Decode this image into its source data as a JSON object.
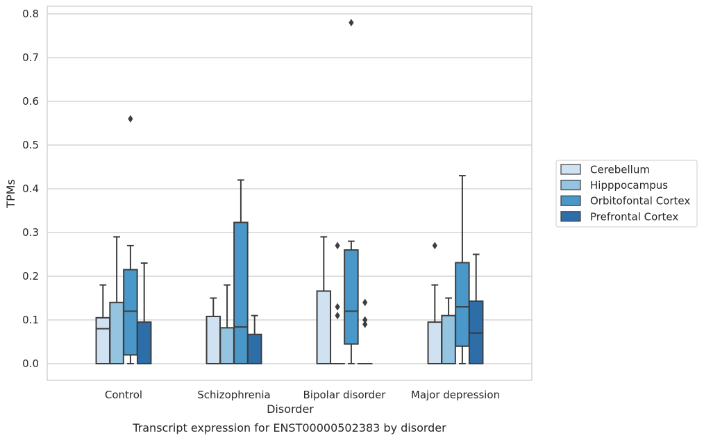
{
  "chart_data": {
    "type": "box",
    "title": "",
    "caption": "Transcript expression for ENST00000502383 by disorder",
    "xlabel": "Disorder",
    "ylabel": "TPMs",
    "ylim": [
      -0.04,
      0.82
    ],
    "yticks": [
      "0.0",
      "0.1",
      "0.2",
      "0.3",
      "0.4",
      "0.5",
      "0.6",
      "0.7",
      "0.8"
    ],
    "grid": "horizontal",
    "legend_position": "right",
    "categories": [
      "Control",
      "Schizophrenia",
      "Bipolar disorder",
      "Major depression"
    ],
    "series": [
      {
        "name": "Cerebellum",
        "color": "#d0e1f2",
        "boxes": [
          {
            "q1": 0.0,
            "median": 0.08,
            "q3": 0.105,
            "whisker_low": 0.0,
            "whisker_high": 0.18,
            "outliers": []
          },
          {
            "q1": 0.0,
            "median": 0.0,
            "q3": 0.108,
            "whisker_low": 0.0,
            "whisker_high": 0.15,
            "outliers": []
          },
          {
            "q1": 0.0,
            "median": 0.0,
            "q3": 0.166,
            "whisker_low": 0.0,
            "whisker_high": 0.29,
            "outliers": []
          },
          {
            "q1": 0.0,
            "median": 0.0,
            "q3": 0.095,
            "whisker_low": 0.0,
            "whisker_high": 0.18,
            "outliers": [
              0.27
            ]
          }
        ]
      },
      {
        "name": "Hipppocampus",
        "color": "#94c4df",
        "boxes": [
          {
            "q1": 0.0,
            "median": 0.0,
            "q3": 0.14,
            "whisker_low": 0.0,
            "whisker_high": 0.29,
            "outliers": []
          },
          {
            "q1": 0.0,
            "median": 0.0,
            "q3": 0.082,
            "whisker_low": 0.0,
            "whisker_high": 0.18,
            "outliers": []
          },
          {
            "q1": 0.0,
            "median": 0.0,
            "q3": 0.0,
            "whisker_low": 0.0,
            "whisker_high": 0.0,
            "outliers": [
              0.27,
              0.13,
              0.11
            ]
          },
          {
            "q1": 0.0,
            "median": 0.0,
            "q3": 0.11,
            "whisker_low": 0.0,
            "whisker_high": 0.15,
            "outliers": []
          }
        ]
      },
      {
        "name": "Orbitofontal Cortex",
        "color": "#4a98c9",
        "boxes": [
          {
            "q1": 0.02,
            "median": 0.12,
            "q3": 0.215,
            "whisker_low": 0.0,
            "whisker_high": 0.27,
            "outliers": [
              0.56
            ]
          },
          {
            "q1": 0.0,
            "median": 0.084,
            "q3": 0.323,
            "whisker_low": 0.0,
            "whisker_high": 0.42,
            "outliers": []
          },
          {
            "q1": 0.045,
            "median": 0.12,
            "q3": 0.26,
            "whisker_low": 0.0,
            "whisker_high": 0.28,
            "outliers": [
              0.78
            ]
          },
          {
            "q1": 0.04,
            "median": 0.13,
            "q3": 0.231,
            "whisker_low": 0.0,
            "whisker_high": 0.43,
            "outliers": []
          }
        ]
      },
      {
        "name": "Prefrontal Cortex",
        "color": "#2e6ea8",
        "boxes": [
          {
            "q1": 0.0,
            "median": 0.0,
            "q3": 0.095,
            "whisker_low": 0.0,
            "whisker_high": 0.23,
            "outliers": []
          },
          {
            "q1": 0.0,
            "median": 0.0,
            "q3": 0.067,
            "whisker_low": 0.0,
            "whisker_high": 0.11,
            "outliers": []
          },
          {
            "q1": 0.0,
            "median": 0.0,
            "q3": 0.0,
            "whisker_low": 0.0,
            "whisker_high": 0.0,
            "outliers": [
              0.14,
              0.1,
              0.09
            ]
          },
          {
            "q1": 0.0,
            "median": 0.07,
            "q3": 0.143,
            "whisker_low": 0.0,
            "whisker_high": 0.25,
            "outliers": []
          }
        ]
      }
    ]
  }
}
